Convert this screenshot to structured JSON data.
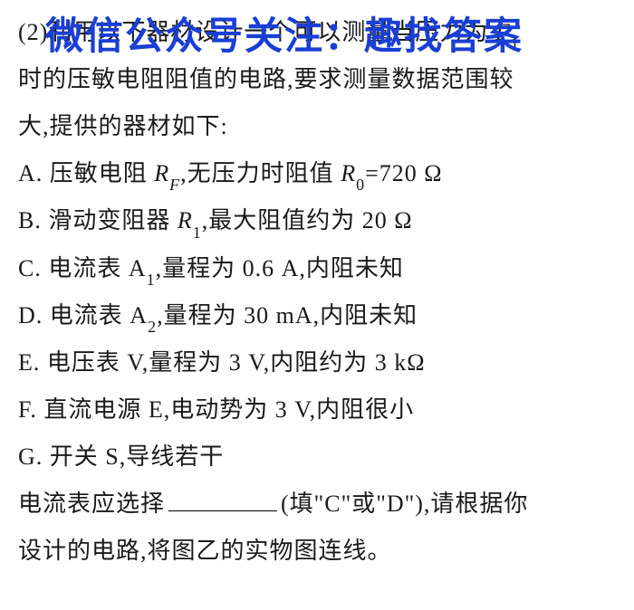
{
  "watermark": {
    "text": "微信公众号关注：趣找答案",
    "color": "#1a3fd4",
    "fontsize": 42
  },
  "document": {
    "text_color": "#1a1a1a",
    "background_color": "#ffffff",
    "fontsize": 26,
    "line_height": 2.0,
    "font_family": "SimSun"
  },
  "lines": {
    "l1a": "(2)利用以下器材设计一个可以测量当压力为 ",
    "l1b_var": "F",
    "l1b_sub": "1",
    "l2": "时的压敏电阻阻值的电路,要求测量数据范围较",
    "l3": "大,提供的器材如下:",
    "lA_a": "A. 压敏电阻 ",
    "lA_var1": "R",
    "lA_sub1": "F",
    "lA_b": ",无压力时阻值 ",
    "lA_var2": "R",
    "lA_sub2": "0",
    "lA_c": "=720 Ω",
    "lB_a": "B. 滑动变阻器 ",
    "lB_var": "R",
    "lB_sub": "1",
    "lB_b": ",最大阻值约为 20 Ω",
    "lC_a": "C. 电流表 A",
    "lC_sub": "1",
    "lC_b": ",量程为 0.6 A,内阻未知",
    "lD_a": "D. 电流表 A",
    "lD_sub": "2",
    "lD_b": ",量程为 30 mA,内阻未知",
    "lE": "E. 电压表 V,量程为 3 V,内阻约为 3 kΩ",
    "lF": "F. 直流电源 E,电动势为 3 V,内阻很小",
    "lG": "G. 开关 S,导线若干",
    "lQ_a": "电流表应选择",
    "lQ_b": "(填\"C\"或\"D\"),请根据你",
    "lLast": "设计的电路,将图乙的实物图连线。"
  }
}
